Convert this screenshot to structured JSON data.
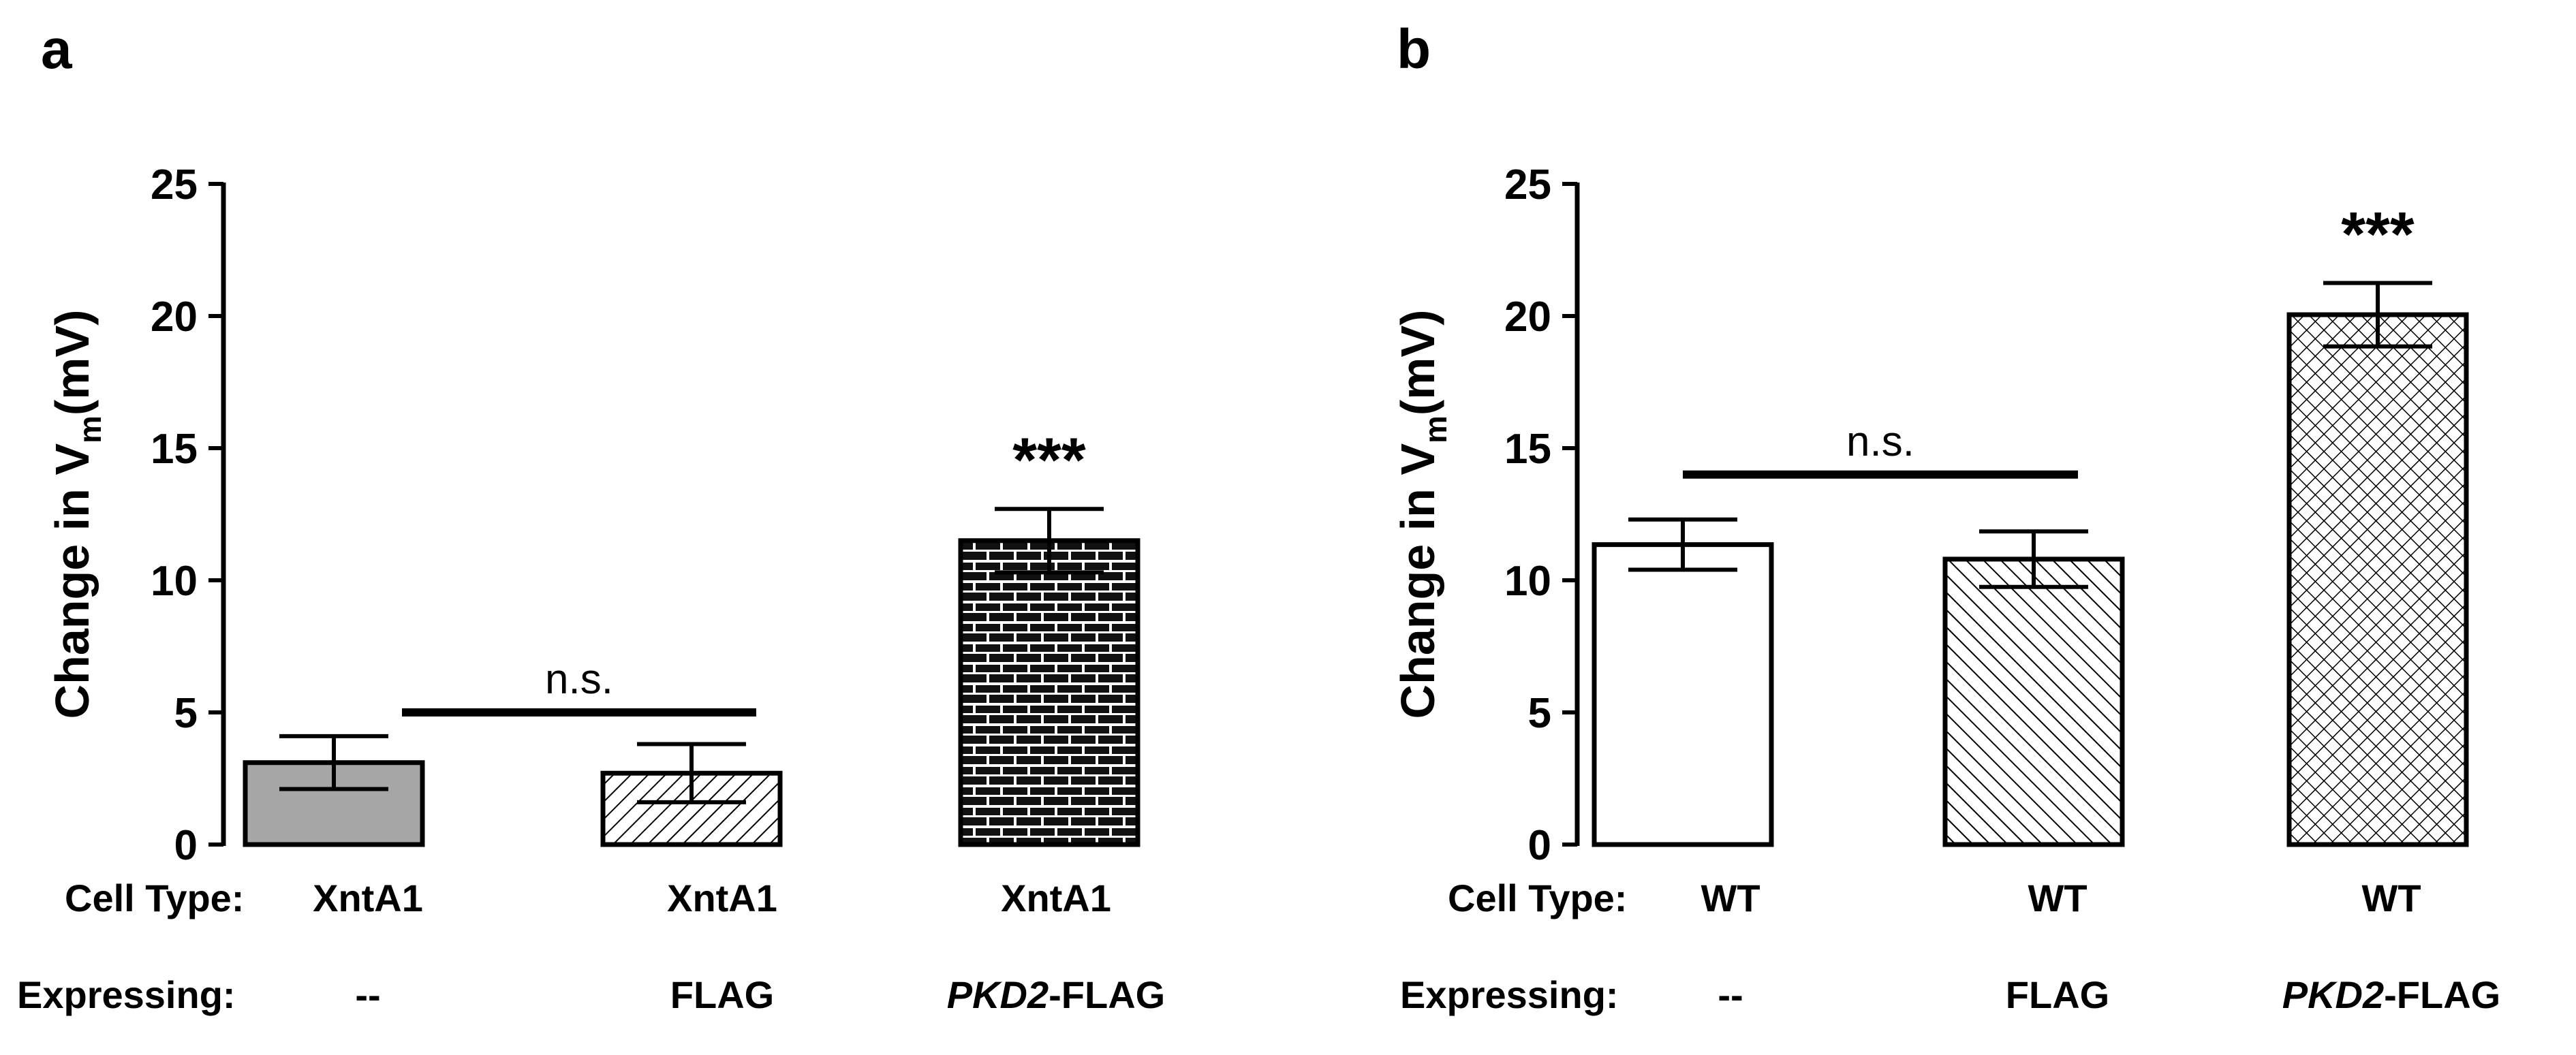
{
  "chart_data": [
    {
      "panel_label": "a",
      "type": "bar",
      "ylabel_prefix": "Change in V",
      "ylabel_subscript": "m",
      "ylabel_suffix": "(mV)",
      "ylim": [
        0,
        25
      ],
      "yticks": [
        "0",
        "5",
        "10",
        "15",
        "20",
        "25"
      ],
      "row_labels": {
        "cell_type": "Cell Type:",
        "expressing": "Expressing:"
      },
      "categories": [
        {
          "cell_type": "XntA1",
          "expressing_italic": "",
          "expressing": "--"
        },
        {
          "cell_type": "XntA1",
          "expressing_italic": "",
          "expressing": "FLAG"
        },
        {
          "cell_type": "XntA1",
          "expressing_italic": "PKD2",
          "expressing": "-FLAG"
        }
      ],
      "values": [
        3.1,
        2.7,
        11.5
      ],
      "errors": [
        1.0,
        1.1,
        1.2
      ],
      "fills": [
        "#a6a6a6",
        "hatch-diag-back",
        "brick"
      ],
      "significance": {
        "bracket_label": "n.s.",
        "bracket_from": 0,
        "bracket_to": 1,
        "bracket_y": 5.0,
        "star_label": "***",
        "star_bar": 2
      }
    },
    {
      "panel_label": "b",
      "type": "bar",
      "ylabel_prefix": "Change in V",
      "ylabel_subscript": "m",
      "ylabel_suffix": "(mV)",
      "ylim": [
        0,
        25
      ],
      "yticks": [
        "0",
        "5",
        "10",
        "15",
        "20",
        "25"
      ],
      "row_labels": {
        "cell_type": "Cell Type:",
        "expressing": "Expressing:"
      },
      "categories": [
        {
          "cell_type": "WT",
          "expressing_italic": "",
          "expressing": "--"
        },
        {
          "cell_type": "WT",
          "expressing_italic": "",
          "expressing": "FLAG"
        },
        {
          "cell_type": "WT",
          "expressing_italic": "PKD2",
          "expressing": "-FLAG"
        }
      ],
      "values": [
        11.35,
        10.8,
        20.05
      ],
      "errors": [
        0.95,
        1.05,
        1.2
      ],
      "fills": [
        "#ffffff",
        "hatch-diag-fwd",
        "crosshatch"
      ],
      "significance": {
        "bracket_label": "n.s.",
        "bracket_from": 0,
        "bracket_to": 1,
        "bracket_y": 14.0,
        "star_label": "***",
        "star_bar": 2
      }
    }
  ]
}
